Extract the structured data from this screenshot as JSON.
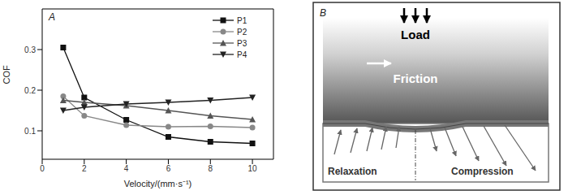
{
  "chart_data": {
    "type": "line",
    "title": "A",
    "x": [
      1,
      2,
      4,
      6,
      8,
      10
    ],
    "series": [
      {
        "name": "P1",
        "color": "#111111",
        "marker": "square",
        "values": [
          0.305,
          0.182,
          0.127,
          0.085,
          0.073,
          0.069
        ]
      },
      {
        "name": "P2",
        "color": "#888888",
        "marker": "circle",
        "values": [
          0.185,
          0.137,
          0.114,
          0.11,
          0.111,
          0.108
        ]
      },
      {
        "name": "P3",
        "color": "#555555",
        "marker": "triangle",
        "values": [
          0.175,
          0.17,
          0.162,
          0.15,
          0.137,
          0.128
        ]
      },
      {
        "name": "P4",
        "color": "#222222",
        "marker": "triangle-down",
        "values": [
          0.15,
          0.158,
          0.166,
          0.17,
          0.175,
          0.182
        ]
      }
    ],
    "x_label": "Velocity/(mm·s⁻¹)",
    "y_label": "COF",
    "xlim": [
      0,
      11
    ],
    "ylim": [
      0.03,
      0.4
    ],
    "xticks": [
      0,
      2,
      4,
      6,
      8,
      10
    ],
    "yticks": [
      0.1,
      0.2,
      0.3
    ],
    "grid": false,
    "legend": "upper right"
  },
  "diagram": {
    "label": "B",
    "load": "Load",
    "friction": "Friction",
    "left": "Relaxation",
    "right": "Compression"
  }
}
